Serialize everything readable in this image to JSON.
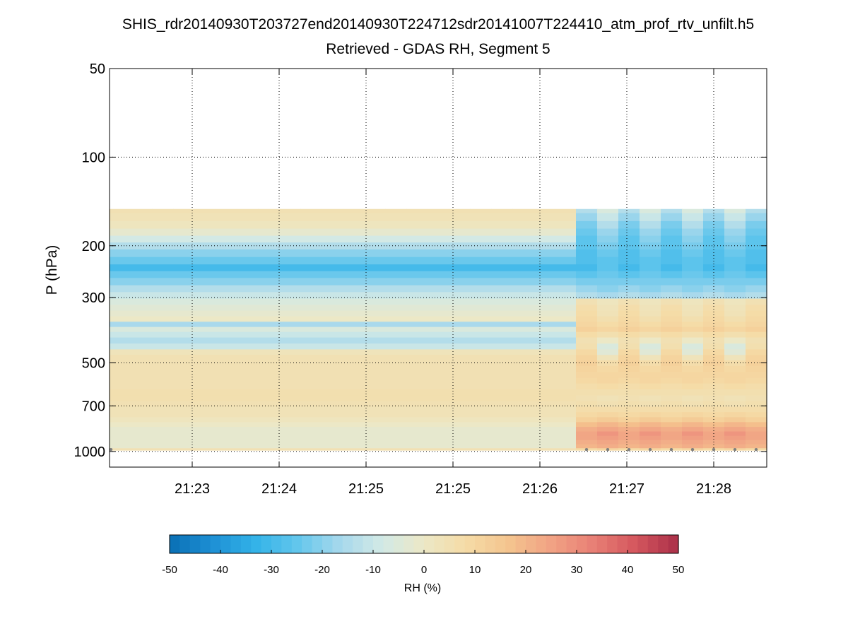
{
  "chart_data": {
    "type": "heatmap",
    "title": "SHIS_rdr20140930T203727end20140930T224712sdr20141007T224410_atm_prof_rtv_unfilt.h5",
    "subtitle": "Retrieved - GDAS RH, Segment 5",
    "ylabel": "P (hPa)",
    "xlabel": "",
    "y_scale": "log",
    "y_reversed": true,
    "ylim": [
      50,
      1130
    ],
    "y_ticks": [
      50,
      100,
      200,
      300,
      500,
      700,
      1000
    ],
    "x_tick_labels": [
      "21:23",
      "21:24",
      "21:25",
      "21:25",
      "21:26",
      "21:27",
      "21:28"
    ],
    "x_columns": 31,
    "x_tick_columns": [
      3.9,
      8.0,
      12.1,
      16.2,
      20.3,
      24.4,
      28.5
    ],
    "grid": true,
    "grid_style": "dotted",
    "surface_marker_columns": [
      22.5,
      23.5,
      24.5,
      25.5,
      26.5,
      27.5,
      28.5,
      29.5,
      30.5
    ],
    "surface_marker_pressure": 985,
    "surface_marker_color": "#808080",
    "pressure_levels": [
      150,
      160,
      170,
      180,
      190,
      200,
      212,
      225,
      238,
      250,
      265,
      280,
      295,
      310,
      325,
      340,
      355,
      370,
      385,
      400,
      420,
      440,
      460,
      480,
      500,
      525,
      550,
      575,
      600,
      630,
      660,
      690,
      720,
      750,
      780,
      810,
      840,
      870,
      900,
      930,
      960,
      990
    ],
    "profile_left": [
      5,
      4,
      2,
      -2,
      -8,
      -14,
      -20,
      -24,
      -30,
      -24,
      -20,
      -14,
      -10,
      -6,
      -4,
      -2,
      0,
      -16,
      -6,
      -10,
      -14,
      -10,
      3,
      5,
      5,
      5,
      5,
      5,
      5,
      6,
      6,
      5,
      4,
      4,
      2,
      0,
      -2,
      -2,
      -2,
      -2,
      -2,
      5
    ],
    "profile_right_a": [
      -14,
      -18,
      -22,
      -24,
      -26,
      -26,
      -28,
      -28,
      -30,
      -26,
      -22,
      -18,
      -14,
      5,
      7,
      8,
      9,
      10,
      12,
      8,
      5,
      6,
      9,
      11,
      12,
      11,
      10,
      9,
      7,
      6,
      5,
      6,
      7,
      9,
      12,
      18,
      22,
      24,
      24,
      22,
      20,
      8
    ],
    "profile_right_b": [
      -6,
      -10,
      -14,
      -18,
      -20,
      -22,
      -24,
      -26,
      -26,
      -24,
      -22,
      -20,
      -16,
      2,
      3,
      4,
      6,
      8,
      10,
      6,
      0,
      -6,
      -4,
      3,
      7,
      9,
      10,
      10,
      8,
      6,
      4,
      5,
      7,
      10,
      14,
      20,
      24,
      28,
      26,
      24,
      22,
      10
    ],
    "colorbar": {
      "label": "RH (%)",
      "range": [
        -50,
        50
      ],
      "tick_values": [
        -50,
        -40,
        -30,
        -20,
        -10,
        0,
        10,
        20,
        30,
        40,
        50
      ],
      "tick_labels": [
        "-50",
        "-40",
        "-30",
        "-20",
        "-10",
        "0",
        "10",
        "20",
        "30",
        "40",
        "50"
      ],
      "colors": [
        "#0a6fb4",
        "#1d8fd4",
        "#32b2e8",
        "#62c6ec",
        "#a5d8ec",
        "#d2e9e6",
        "#ece8c6",
        "#f5dba6",
        "#f4c48e",
        "#f1a284",
        "#e87f75",
        "#d4565d",
        "#aa2f48"
      ]
    }
  }
}
